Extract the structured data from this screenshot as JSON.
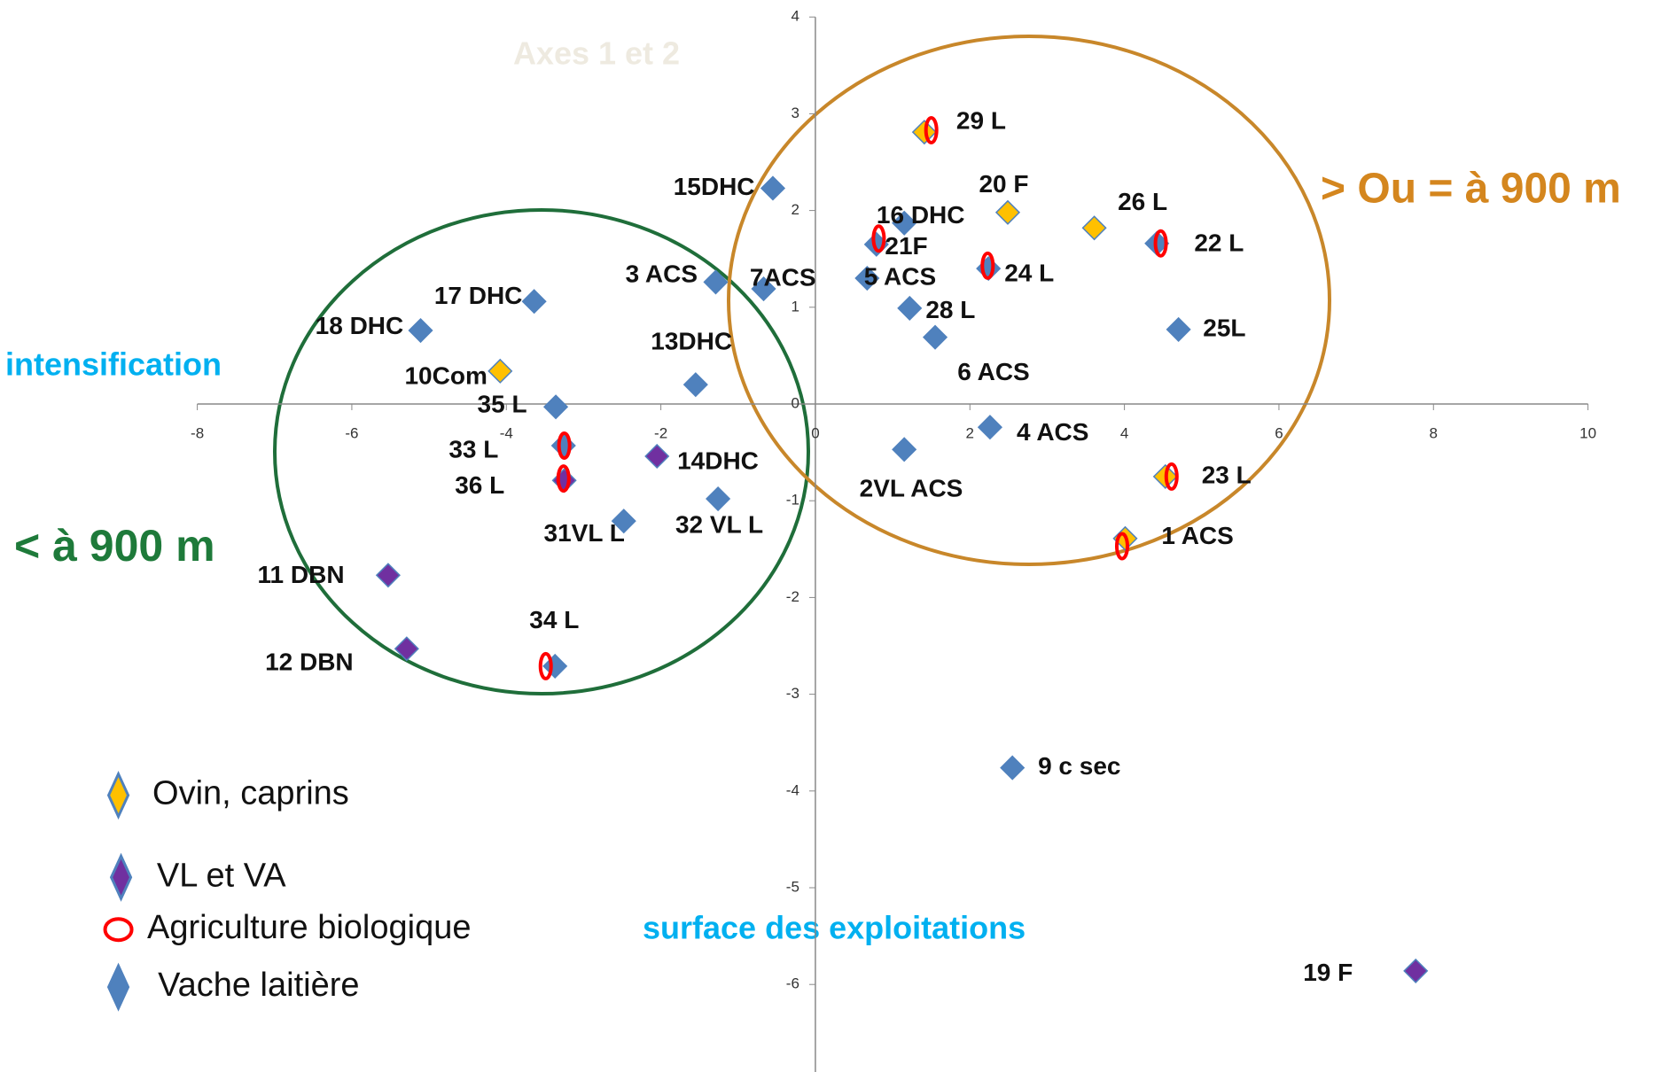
{
  "chart_data": {
    "type": "scatter",
    "subtitle": "Axes 1 et 2",
    "xlim": [
      -8,
      10
    ],
    "xticks": [
      -8,
      -6,
      -4,
      -2,
      0,
      2,
      4,
      6,
      8,
      10
    ],
    "ylim": [
      -7,
      4
    ],
    "yticks": [
      4,
      3,
      2,
      1,
      0,
      -1,
      -2,
      -3,
      -4,
      -5,
      -6,
      -7
    ],
    "series": [
      {
        "name": "Ovin, caprins",
        "color": "#ffc000",
        "x": [
          1.41,
          2.49,
          3.61,
          -4.08,
          4.53,
          4.01
        ],
        "y": [
          2.81,
          1.98,
          1.82,
          0.34,
          -0.75,
          -1.39
        ],
        "labels": [
          "29 L",
          "20 F",
          "26 L",
          "10Com",
          "23  L",
          "1 ACS"
        ]
      },
      {
        "name": "VL et VA",
        "color": "#7030a0",
        "x": [
          -2.05,
          -3.25,
          -5.53,
          -5.29,
          7.77
        ],
        "y": [
          -0.54,
          -0.79,
          -1.77,
          -2.53,
          -5.86
        ],
        "labels": [
          "14DHC",
          "36  L",
          "11 DBN",
          "12 DBN",
          "19 F"
        ]
      },
      {
        "name": "Agriculture biologique",
        "color": "#ff0000",
        "x": [
          1.5,
          4.47,
          0.82,
          2.23,
          -3.25,
          -3.26,
          4.61,
          3.97,
          -3.49
        ],
        "y": [
          2.83,
          1.66,
          1.71,
          1.43,
          -0.43,
          -0.77,
          -0.75,
          -1.47,
          -2.71
        ]
      },
      {
        "name": "Vache laitière",
        "color": "#4f81bd",
        "x": [
          -0.55,
          4.42,
          1.15,
          0.79,
          2.24,
          0.67,
          -1.29,
          -0.67,
          1.22,
          4.7,
          1.55,
          -3.64,
          -5.11,
          -1.55,
          -3.36,
          2.26,
          1.15,
          -3.26,
          -1.26,
          -2.48,
          -3.37,
          2.55
        ],
        "y": [
          2.23,
          1.66,
          1.87,
          1.65,
          1.4,
          1.3,
          1.26,
          1.19,
          0.99,
          0.77,
          0.69,
          1.06,
          0.76,
          0.2,
          -0.03,
          -0.24,
          -0.47,
          -0.43,
          -0.98,
          -1.21,
          -2.71,
          -3.76
        ],
        "labels": [
          "15DHC",
          "22 L",
          "16 DHC",
          "21F",
          "24 L",
          "5 ACS",
          "3 ACS",
          "7ACS",
          "28 L",
          "25L",
          "6 ACS",
          "17 DHC",
          "18 DHC",
          "13DHC",
          "35 L",
          "4 ACS",
          "2VL ACS",
          "33 L",
          "32 VL L",
          "31VL L",
          "34 L",
          "9 c sec"
        ]
      }
    ],
    "annotations": [
      "intensification",
      "surface des exploitations",
      "< à 900 m",
      "> Ou = à 900 m"
    ]
  }
}
